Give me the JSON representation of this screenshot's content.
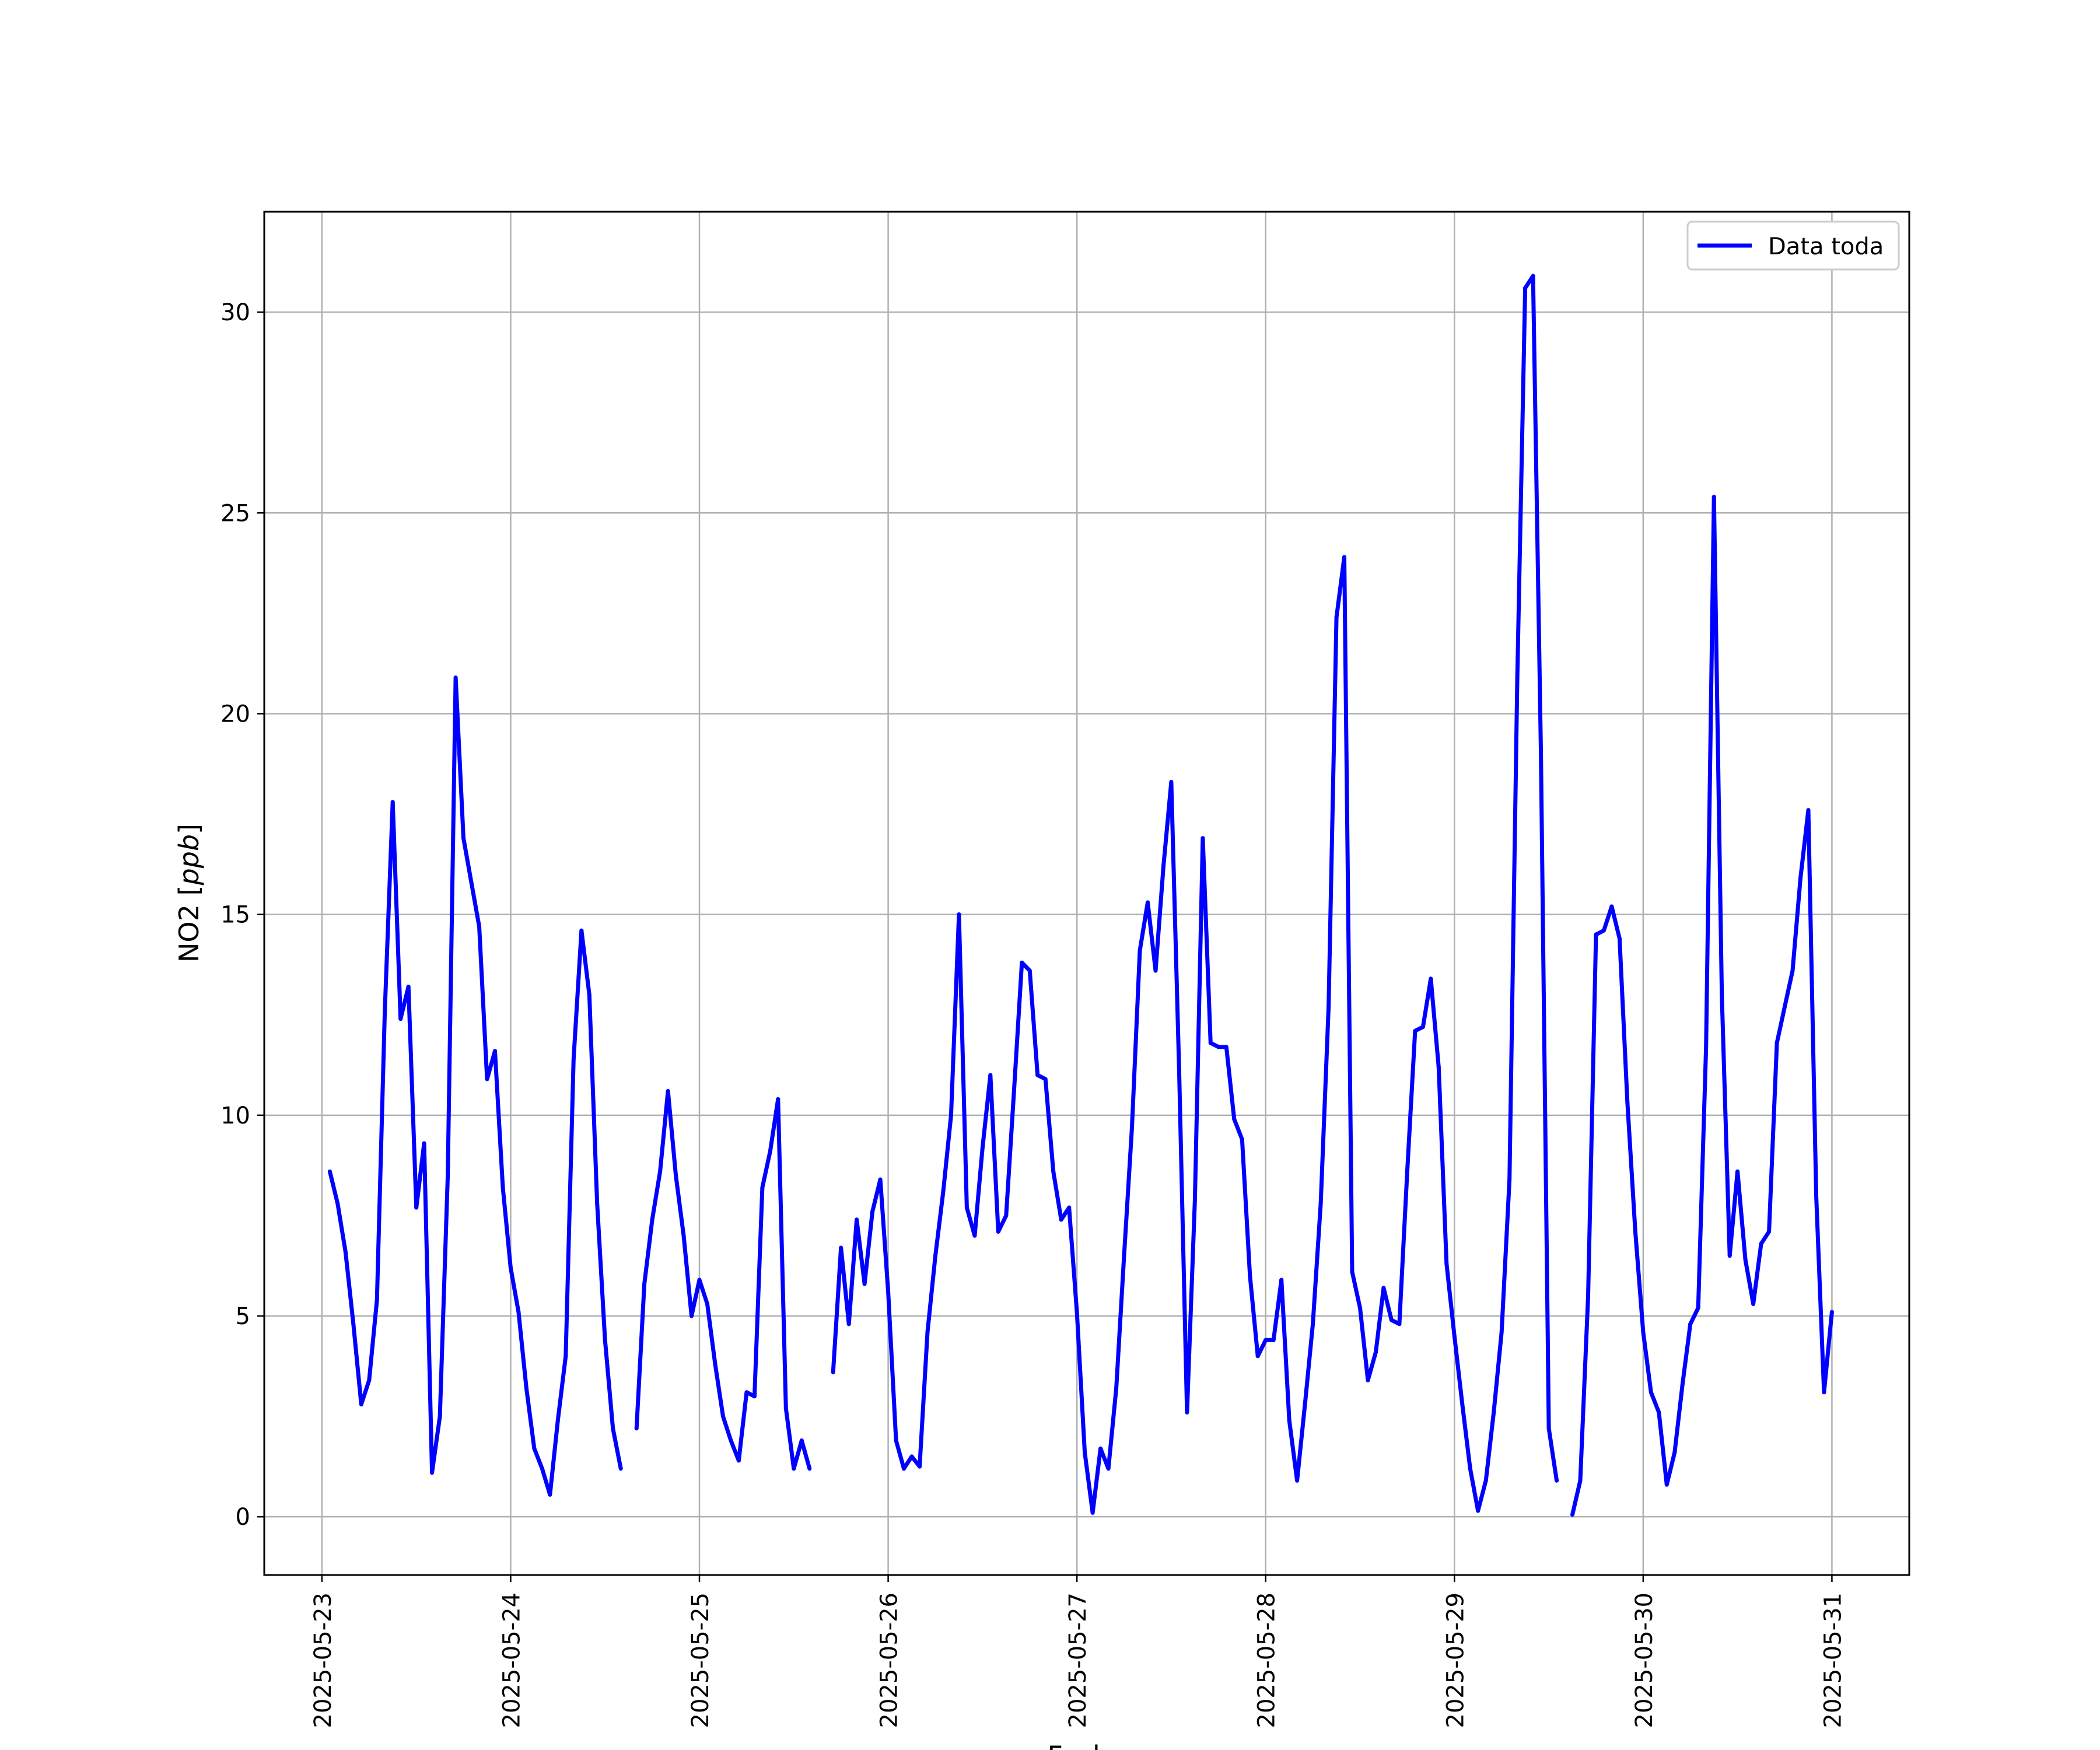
{
  "chart_data": {
    "type": "line",
    "title": "",
    "xlabel": "Fecha",
    "ylabel_text": "NO2 ",
    "ylabel_unit": "ppb",
    "x_type": "date",
    "xlim": [
      "2025-05-22 16:40",
      "2025-05-31 09:50"
    ],
    "ylim": [
      -1.45,
      32.5
    ],
    "x_ticks": [
      "2025-05-23",
      "2025-05-24",
      "2025-05-25",
      "2025-05-26",
      "2025-05-27",
      "2025-05-28",
      "2025-05-29",
      "2025-05-30",
      "2025-05-31"
    ],
    "y_ticks": [
      0,
      5,
      10,
      15,
      20,
      25,
      30
    ],
    "grid": true,
    "legend_position": "top-right",
    "series": [
      {
        "name": "Data toda",
        "color": "#0000ff",
        "points": [
          [
            "2025-05-23 01:00",
            8.6
          ],
          [
            "2025-05-23 02:00",
            7.8
          ],
          [
            "2025-05-23 03:00",
            6.6
          ],
          [
            "2025-05-23 04:00",
            4.8
          ],
          [
            "2025-05-23 05:00",
            2.8
          ],
          [
            "2025-05-23 06:00",
            3.4
          ],
          [
            "2025-05-23 07:00",
            5.4
          ],
          [
            "2025-05-23 08:00",
            12.6
          ],
          [
            "2025-05-23 09:00",
            17.8
          ],
          [
            "2025-05-23 10:00",
            12.4
          ],
          [
            "2025-05-23 11:00",
            13.2
          ],
          [
            "2025-05-23 12:00",
            7.7
          ],
          [
            "2025-05-23 13:00",
            9.3
          ],
          [
            "2025-05-23 14:00",
            1.1
          ],
          [
            "2025-05-23 15:00",
            2.5
          ],
          [
            "2025-05-23 16:00",
            8.5
          ],
          [
            "2025-05-23 17:00",
            20.9
          ],
          [
            "2025-05-23 18:00",
            16.9
          ],
          [
            "2025-05-23 19:00",
            15.8
          ],
          [
            "2025-05-23 20:00",
            14.7
          ],
          [
            "2025-05-23 21:00",
            10.9
          ],
          [
            "2025-05-23 22:00",
            11.6
          ],
          [
            "2025-05-23 23:00",
            8.2
          ],
          [
            "2025-05-24 00:00",
            6.2
          ],
          [
            "2025-05-24 01:00",
            5.1
          ],
          [
            "2025-05-24 02:00",
            3.2
          ],
          [
            "2025-05-24 03:00",
            1.7
          ],
          [
            "2025-05-24 04:00",
            1.2
          ],
          [
            "2025-05-24 05:00",
            0.55
          ],
          [
            "2025-05-24 06:00",
            2.4
          ],
          [
            "2025-05-24 07:00",
            4.0
          ],
          [
            "2025-05-24 08:00",
            11.4
          ],
          [
            "2025-05-24 09:00",
            14.6
          ],
          [
            "2025-05-24 10:00",
            13.0
          ],
          [
            "2025-05-24 11:00",
            7.8
          ],
          [
            "2025-05-24 12:00",
            4.4
          ],
          [
            "2025-05-24 13:00",
            2.2
          ],
          [
            "2025-05-24 14:00",
            1.2
          ],
          null,
          [
            "2025-05-24 16:00",
            2.2
          ],
          [
            "2025-05-24 17:00",
            5.8
          ],
          [
            "2025-05-24 18:00",
            7.4
          ],
          [
            "2025-05-24 19:00",
            8.6
          ],
          [
            "2025-05-24 20:00",
            10.6
          ],
          [
            "2025-05-24 21:00",
            8.5
          ],
          [
            "2025-05-24 22:00",
            7.0
          ],
          [
            "2025-05-24 23:00",
            5.0
          ],
          [
            "2025-05-25 00:00",
            5.9
          ],
          [
            "2025-05-25 01:00",
            5.3
          ],
          [
            "2025-05-25 02:00",
            3.8
          ],
          [
            "2025-05-25 03:00",
            2.5
          ],
          [
            "2025-05-25 04:00",
            1.9
          ],
          [
            "2025-05-25 05:00",
            1.4
          ],
          [
            "2025-05-25 06:00",
            3.1
          ],
          [
            "2025-05-25 07:00",
            3.0
          ],
          [
            "2025-05-25 08:00",
            8.2
          ],
          [
            "2025-05-25 09:00",
            9.1
          ],
          [
            "2025-05-25 10:00",
            10.4
          ],
          [
            "2025-05-25 11:00",
            2.7
          ],
          [
            "2025-05-25 12:00",
            1.2
          ],
          [
            "2025-05-25 13:00",
            1.9
          ],
          [
            "2025-05-25 14:00",
            1.2
          ],
          null,
          [
            "2025-05-25 17:00",
            3.6
          ],
          [
            "2025-05-25 18:00",
            6.7
          ],
          [
            "2025-05-25 19:00",
            4.8
          ],
          [
            "2025-05-25 20:00",
            7.4
          ],
          [
            "2025-05-25 21:00",
            5.8
          ],
          [
            "2025-05-25 22:00",
            7.6
          ],
          [
            "2025-05-25 23:00",
            8.4
          ],
          [
            "2025-05-26 00:00",
            5.6
          ],
          [
            "2025-05-26 01:00",
            1.9
          ],
          [
            "2025-05-26 02:00",
            1.2
          ],
          [
            "2025-05-26 03:00",
            1.5
          ],
          [
            "2025-05-26 04:00",
            1.25
          ],
          [
            "2025-05-26 05:00",
            4.6
          ],
          [
            "2025-05-26 06:00",
            6.5
          ],
          [
            "2025-05-26 07:00",
            8.1
          ],
          [
            "2025-05-26 08:00",
            10.0
          ],
          [
            "2025-05-26 09:00",
            15.0
          ],
          [
            "2025-05-26 10:00",
            7.7
          ],
          [
            "2025-05-26 11:00",
            7.0
          ],
          [
            "2025-05-26 12:00",
            9.2
          ],
          [
            "2025-05-26 13:00",
            11.0
          ],
          [
            "2025-05-26 14:00",
            7.1
          ],
          [
            "2025-05-26 15:00",
            7.5
          ],
          [
            "2025-05-26 16:00",
            10.6
          ],
          [
            "2025-05-26 17:00",
            13.8
          ],
          [
            "2025-05-26 18:00",
            13.6
          ],
          [
            "2025-05-26 19:00",
            11.0
          ],
          [
            "2025-05-26 20:00",
            10.9
          ],
          [
            "2025-05-26 21:00",
            8.6
          ],
          [
            "2025-05-26 22:00",
            7.4
          ],
          [
            "2025-05-26 23:00",
            7.7
          ],
          [
            "2025-05-27 00:00",
            5.1
          ],
          [
            "2025-05-27 01:00",
            1.6
          ],
          [
            "2025-05-27 02:00",
            0.1
          ],
          [
            "2025-05-27 03:00",
            1.7
          ],
          [
            "2025-05-27 04:00",
            1.2
          ],
          [
            "2025-05-27 05:00",
            3.2
          ],
          [
            "2025-05-27 06:00",
            6.5
          ],
          [
            "2025-05-27 07:00",
            9.7
          ],
          [
            "2025-05-27 08:00",
            14.1
          ],
          [
            "2025-05-27 09:00",
            15.3
          ],
          [
            "2025-05-27 10:00",
            13.6
          ],
          [
            "2025-05-27 11:00",
            16.2
          ],
          [
            "2025-05-27 12:00",
            18.3
          ],
          [
            "2025-05-27 13:00",
            11.1
          ],
          [
            "2025-05-27 14:00",
            2.6
          ],
          [
            "2025-05-27 15:00",
            7.9
          ],
          [
            "2025-05-27 16:00",
            16.9
          ],
          [
            "2025-05-27 17:00",
            11.8
          ],
          [
            "2025-05-27 18:00",
            11.7
          ],
          [
            "2025-05-27 19:00",
            11.7
          ],
          [
            "2025-05-27 20:00",
            9.9
          ],
          [
            "2025-05-27 21:00",
            9.4
          ],
          [
            "2025-05-27 22:00",
            6.0
          ],
          [
            "2025-05-27 23:00",
            4.0
          ],
          [
            "2025-05-28 00:00",
            4.4
          ],
          [
            "2025-05-28 01:00",
            4.4
          ],
          [
            "2025-05-28 02:00",
            5.9
          ],
          [
            "2025-05-28 03:00",
            2.4
          ],
          [
            "2025-05-28 04:00",
            0.9
          ],
          [
            "2025-05-28 05:00",
            2.8
          ],
          [
            "2025-05-28 06:00",
            4.8
          ],
          [
            "2025-05-28 07:00",
            7.8
          ],
          [
            "2025-05-28 08:00",
            12.7
          ],
          [
            "2025-05-28 09:00",
            22.4
          ],
          [
            "2025-05-28 10:00",
            23.9
          ],
          [
            "2025-05-28 11:00",
            6.1
          ],
          [
            "2025-05-28 12:00",
            5.2
          ],
          [
            "2025-05-28 13:00",
            3.4
          ],
          [
            "2025-05-28 14:00",
            4.1
          ],
          [
            "2025-05-28 15:00",
            5.7
          ],
          [
            "2025-05-28 16:00",
            4.9
          ],
          [
            "2025-05-28 17:00",
            4.8
          ],
          [
            "2025-05-28 18:00",
            8.6
          ],
          [
            "2025-05-28 19:00",
            12.1
          ],
          [
            "2025-05-28 20:00",
            12.2
          ],
          [
            "2025-05-28 21:00",
            13.4
          ],
          [
            "2025-05-28 22:00",
            11.2
          ],
          [
            "2025-05-28 23:00",
            6.3
          ],
          [
            "2025-05-29 00:00",
            4.5
          ],
          [
            "2025-05-29 01:00",
            2.8
          ],
          [
            "2025-05-29 02:00",
            1.2
          ],
          [
            "2025-05-29 03:00",
            0.15
          ],
          [
            "2025-05-29 04:00",
            0.9
          ],
          [
            "2025-05-29 05:00",
            2.6
          ],
          [
            "2025-05-29 06:00",
            4.6
          ],
          [
            "2025-05-29 07:00",
            8.4
          ],
          [
            "2025-05-29 08:00",
            20.9
          ],
          [
            "2025-05-29 09:00",
            30.6
          ],
          [
            "2025-05-29 10:00",
            30.9
          ],
          [
            "2025-05-29 11:00",
            19.0
          ],
          [
            "2025-05-29 12:00",
            2.2
          ],
          [
            "2025-05-29 13:00",
            0.9
          ],
          null,
          [
            "2025-05-29 15:00",
            0.05
          ],
          [
            "2025-05-29 16:00",
            0.9
          ],
          [
            "2025-05-29 17:00",
            5.5
          ],
          [
            "2025-05-29 18:00",
            14.5
          ],
          [
            "2025-05-29 19:00",
            14.6
          ],
          [
            "2025-05-29 20:00",
            15.2
          ],
          [
            "2025-05-29 21:00",
            14.4
          ],
          [
            "2025-05-29 22:00",
            10.3
          ],
          [
            "2025-05-29 23:00",
            7.1
          ],
          [
            "2025-05-30 00:00",
            4.6
          ],
          [
            "2025-05-30 01:00",
            3.1
          ],
          [
            "2025-05-30 02:00",
            2.6
          ],
          [
            "2025-05-30 03:00",
            0.8
          ],
          [
            "2025-05-30 04:00",
            1.6
          ],
          [
            "2025-05-30 05:00",
            3.3
          ],
          [
            "2025-05-30 06:00",
            4.8
          ],
          [
            "2025-05-30 07:00",
            5.2
          ],
          [
            "2025-05-30 08:00",
            11.7
          ],
          [
            "2025-05-30 09:00",
            25.4
          ],
          [
            "2025-05-30 10:00",
            13.0
          ],
          [
            "2025-05-30 11:00",
            6.5
          ],
          [
            "2025-05-30 12:00",
            8.6
          ],
          [
            "2025-05-30 13:00",
            6.4
          ],
          [
            "2025-05-30 14:00",
            5.3
          ],
          [
            "2025-05-30 15:00",
            6.8
          ],
          [
            "2025-05-30 16:00",
            7.1
          ],
          [
            "2025-05-30 17:00",
            11.8
          ],
          [
            "2025-05-30 18:00",
            12.7
          ],
          [
            "2025-05-30 19:00",
            13.6
          ],
          [
            "2025-05-30 20:00",
            15.9
          ],
          [
            "2025-05-30 21:00",
            17.6
          ],
          [
            "2025-05-30 22:00",
            8.0
          ],
          [
            "2025-05-30 23:00",
            3.1
          ],
          [
            "2025-05-31 00:00",
            5.1
          ]
        ]
      }
    ]
  }
}
